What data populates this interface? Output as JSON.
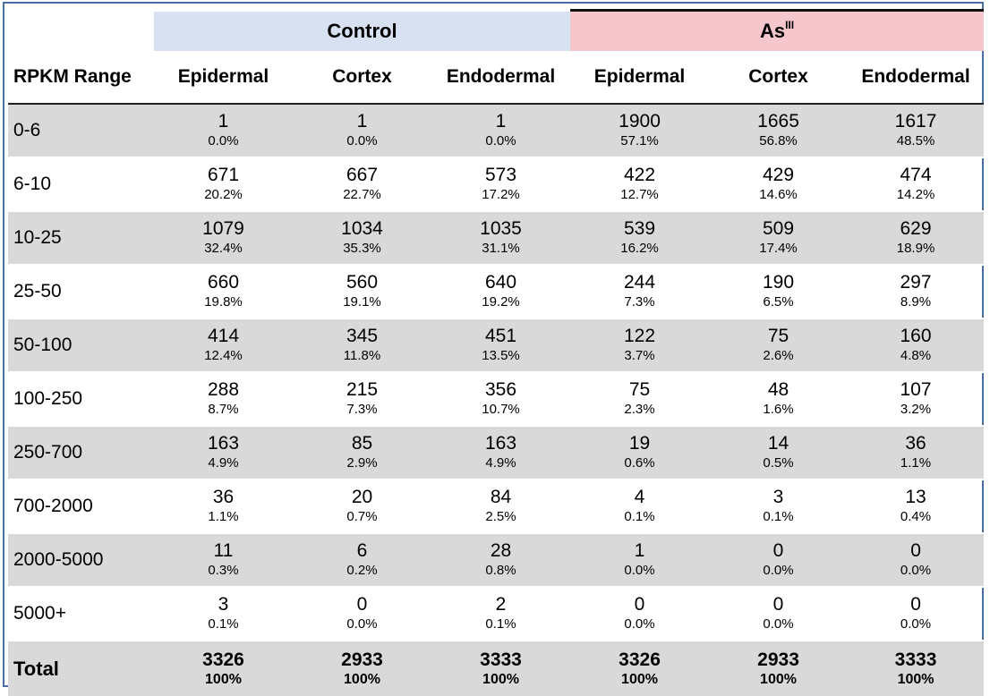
{
  "table": {
    "groups": {
      "control": "Control",
      "as_base": "As",
      "as_sup": "III"
    },
    "columns": [
      "RPKM Range",
      "Epidermal",
      "Cortex",
      "Endodermal",
      "Epidermal",
      "Cortex",
      "Endodermal"
    ],
    "rows": [
      {
        "range": "0-6",
        "cells": [
          {
            "n": "1",
            "p": "0.0%"
          },
          {
            "n": "1",
            "p": "0.0%"
          },
          {
            "n": "1",
            "p": "0.0%"
          },
          {
            "n": "1900",
            "p": "57.1%"
          },
          {
            "n": "1665",
            "p": "56.8%"
          },
          {
            "n": "1617",
            "p": "48.5%"
          }
        ]
      },
      {
        "range": "6-10",
        "cells": [
          {
            "n": "671",
            "p": "20.2%"
          },
          {
            "n": "667",
            "p": "22.7%"
          },
          {
            "n": "573",
            "p": "17.2%"
          },
          {
            "n": "422",
            "p": "12.7%"
          },
          {
            "n": "429",
            "p": "14.6%"
          },
          {
            "n": "474",
            "p": "14.2%"
          }
        ]
      },
      {
        "range": "10-25",
        "cells": [
          {
            "n": "1079",
            "p": "32.4%"
          },
          {
            "n": "1034",
            "p": "35.3%"
          },
          {
            "n": "1035",
            "p": "31.1%"
          },
          {
            "n": "539",
            "p": "16.2%"
          },
          {
            "n": "509",
            "p": "17.4%"
          },
          {
            "n": "629",
            "p": "18.9%"
          }
        ]
      },
      {
        "range": "25-50",
        "cells": [
          {
            "n": "660",
            "p": "19.8%"
          },
          {
            "n": "560",
            "p": "19.1%"
          },
          {
            "n": "640",
            "p": "19.2%"
          },
          {
            "n": "244",
            "p": "7.3%"
          },
          {
            "n": "190",
            "p": "6.5%"
          },
          {
            "n": "297",
            "p": "8.9%"
          }
        ]
      },
      {
        "range": "50-100",
        "cells": [
          {
            "n": "414",
            "p": "12.4%"
          },
          {
            "n": "345",
            "p": "11.8%"
          },
          {
            "n": "451",
            "p": "13.5%"
          },
          {
            "n": "122",
            "p": "3.7%"
          },
          {
            "n": "75",
            "p": "2.6%"
          },
          {
            "n": "160",
            "p": "4.8%"
          }
        ]
      },
      {
        "range": "100-250",
        "cells": [
          {
            "n": "288",
            "p": "8.7%"
          },
          {
            "n": "215",
            "p": "7.3%"
          },
          {
            "n": "356",
            "p": "10.7%"
          },
          {
            "n": "75",
            "p": "2.3%"
          },
          {
            "n": "48",
            "p": "1.6%"
          },
          {
            "n": "107",
            "p": "3.2%"
          }
        ]
      },
      {
        "range": "250-700",
        "cells": [
          {
            "n": "163",
            "p": "4.9%"
          },
          {
            "n": "85",
            "p": "2.9%"
          },
          {
            "n": "163",
            "p": "4.9%"
          },
          {
            "n": "19",
            "p": "0.6%"
          },
          {
            "n": "14",
            "p": "0.5%"
          },
          {
            "n": "36",
            "p": "1.1%"
          }
        ]
      },
      {
        "range": "700-2000",
        "cells": [
          {
            "n": "36",
            "p": "1.1%"
          },
          {
            "n": "20",
            "p": "0.7%"
          },
          {
            "n": "84",
            "p": "2.5%"
          },
          {
            "n": "4",
            "p": "0.1%"
          },
          {
            "n": "3",
            "p": "0.1%"
          },
          {
            "n": "13",
            "p": "0.4%"
          }
        ]
      },
      {
        "range": "2000-5000",
        "cells": [
          {
            "n": "11",
            "p": "0.3%"
          },
          {
            "n": "6",
            "p": "0.2%"
          },
          {
            "n": "28",
            "p": "0.8%"
          },
          {
            "n": "1",
            "p": "0.0%"
          },
          {
            "n": "0",
            "p": "0.0%"
          },
          {
            "n": "0",
            "p": "0.0%"
          }
        ]
      },
      {
        "range": "5000+",
        "cells": [
          {
            "n": "3",
            "p": "0.1%"
          },
          {
            "n": "0",
            "p": "0.0%"
          },
          {
            "n": "2",
            "p": "0.1%"
          },
          {
            "n": "0",
            "p": "0.0%"
          },
          {
            "n": "0",
            "p": "0.0%"
          },
          {
            "n": "0",
            "p": "0.0%"
          }
        ]
      }
    ],
    "total": {
      "label": "Total",
      "cells": [
        {
          "n": "3326",
          "p": "100%"
        },
        {
          "n": "2933",
          "p": "100%"
        },
        {
          "n": "3333",
          "p": "100%"
        },
        {
          "n": "3326",
          "p": "100%"
        },
        {
          "n": "2933",
          "p": "100%"
        },
        {
          "n": "3333",
          "p": "100%"
        }
      ]
    }
  },
  "colors": {
    "control_header": "#d8e1f1",
    "as_header": "#f5c7cd",
    "row_shade": "#d9d9d9",
    "frame_border": "#4a6fa5"
  }
}
